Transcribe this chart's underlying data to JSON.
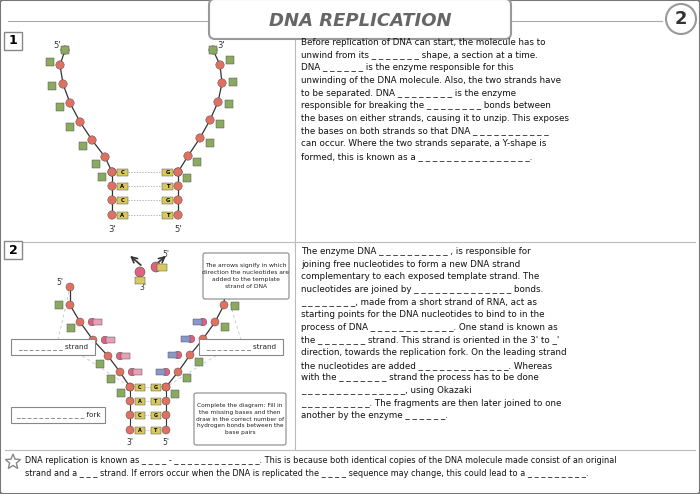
{
  "title": "DNA REPLICATION",
  "page_num": "2",
  "bg_color": "#f0f0eb",
  "border_color": "#888888",
  "text_color": "#111111",
  "section1_text": "Before replication of DNA can start, the molecule has to\nunwind from its _ _ _ _ _ _ _ shape, a section at a time.\nDNA _ _ _ _ _ _ is the enzyme responsible for this\nunwinding of the DNA molecule. Also, the two strands have\nto be separated. DNA _ _ _ _ _ _ _ _ is the enzyme\nresponsible for breaking the _ _ _ _ _ _ _ _ bonds between\nthe bases on either strands, causing it to unzip. This exposes\nthe bases on both strands so that DNA _ _ _ _ _ _ _ _ _ _ _\ncan occur. Where the two strands separate, a Y-shape is\nformed, this is known as a _ _ _ _ _ _ _ _ _ _ _ _ _ _ _ _.",
  "section2_text": "The enzyme DNA _ _ _ _ _ _ _ _ _ _ , is responsible for\njoining free nucleotides to form a new DNA strand\ncomplementary to each exposed template strand. The\nnucleotides are joined by _ _ _ _ _ _ _ _ _ _ _ _ _ _ bonds.\n_ _ _ _ _ _ _ _, made from a short strand of RNA, act as\nstarting points for the DNA nucleotides to bind to in the\nprocess of DNA _ _ _ _ _ _ _ _ _ _ _ _. One stand is known as\nthe _ _ _ _ _ _ _ strand. This strand is oriented in the 3' to _'\ndirection, towards the replication fork. On the leading strand\nthe nucleotides are added _ _ _ _ _ _ _ _ _ _ _ _ _. Whereas\nwith the _ _ _ _ _ _ _ strand the process has to be done\n_ _ _ _ _ _ _ _ _ _ _ _ _ _ _, using Okazaki\n_ _ _ _ _ _ _ _ _ _. The fragments are then later joined to one\nanother by the enzyme _ _ _ _ _ _.",
  "bottom_text": "DNA replication is known as _ _ _ _ - _ _ _ _ _ _ _ _ _ _ _ _ _. This is because both identical copies of the DNA molecule made consist of an original\nstrand and a _ _ _ strand. If errors occur when the DNA is replicated the _ _ _ _ sequence may change, this could lead to a _ _ _ _ _ _ _ _ _.",
  "arrow_note": "The arrows signify in which\ndirection the nucleotides are\nadded to the template\nstrand of DNA",
  "fill_note": "Complete the diagram: Fill in\nthe missing bases and then\ndraw in the correct number of\nhydrogen bonds between the\nbase pairs",
  "label_left_strand": "_ _ _ _ _ _ _ _ strand",
  "label_right_strand": "_ _ _ _ _ _ _ _ strand",
  "label_fork": "_ _ _ _ _ _ _ _ _ _ _ _ fork",
  "salmon": "#e07060",
  "yellow": "#d8c860",
  "green_sq": "#8aaa60",
  "blue_rect": "#8898c8",
  "pink_circ": "#e06080",
  "pink_sq": "#e8a0b8"
}
